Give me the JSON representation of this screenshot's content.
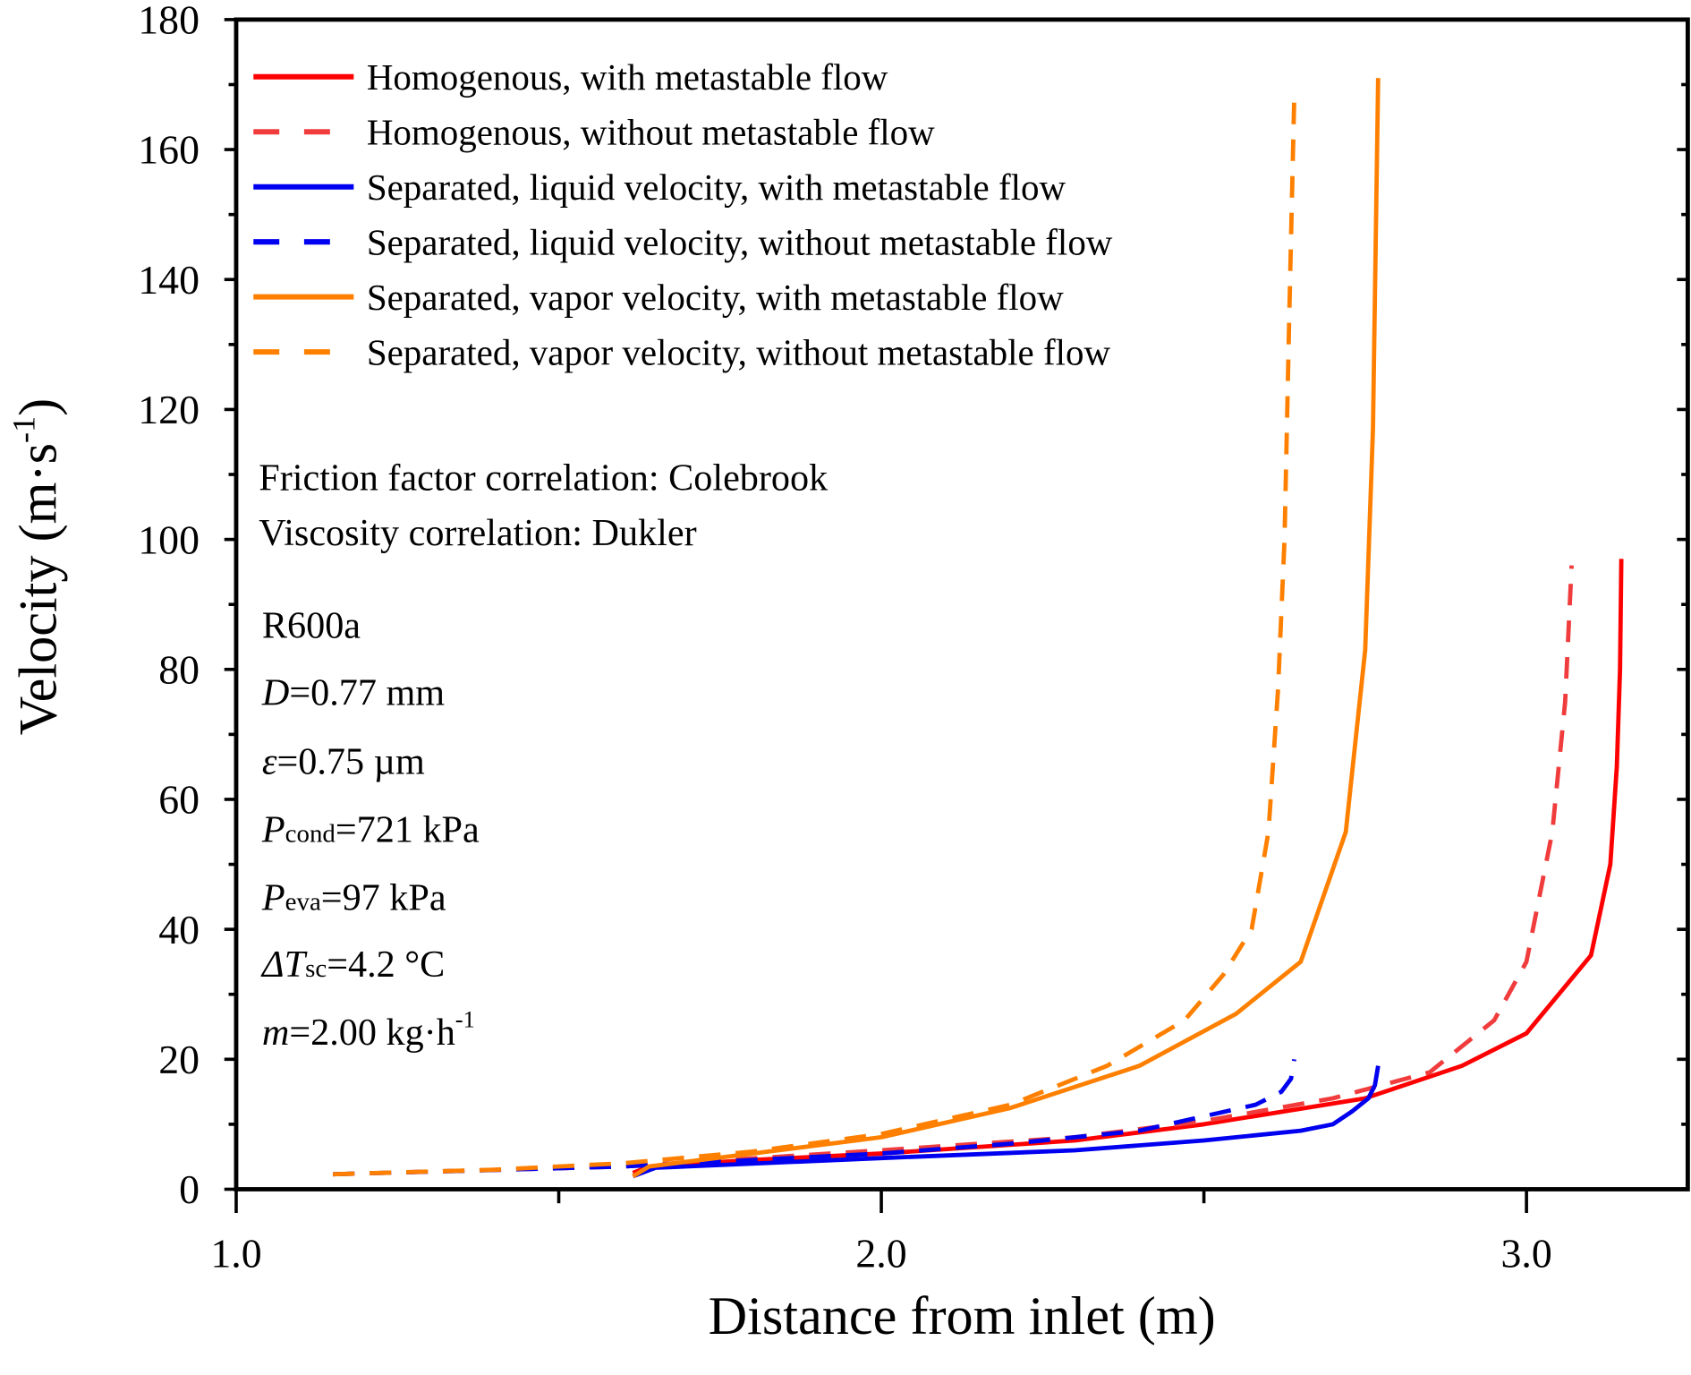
{
  "chart_data": {
    "type": "line",
    "xlabel": "Distance from inlet (m)",
    "ylabel": "Velocity (m·s",
    "ylabel_sup": "-1",
    "ylabel_end": ")",
    "xlim": [
      1.0,
      3.25
    ],
    "ylim": [
      0,
      180
    ],
    "xticks": [
      "1.0",
      "2.0",
      "3.0"
    ],
    "xtick_values": [
      1.0,
      2.0,
      3.0
    ],
    "xminor_values": [
      1.5,
      2.5
    ],
    "yticks": [
      "0",
      "20",
      "40",
      "60",
      "80",
      "100",
      "120",
      "140",
      "160",
      "180"
    ],
    "ytick_values": [
      0,
      20,
      40,
      60,
      80,
      100,
      120,
      140,
      160,
      180
    ],
    "grid": false,
    "legend_placement": "top-left",
    "series": [
      {
        "name": "Homogenous, with metastable flow",
        "color": "#ff0000",
        "dash": false,
        "x": [
          1.615,
          1.64,
          1.8,
          2.0,
          2.3,
          2.5,
          2.75,
          2.9,
          3.0,
          3.1,
          3.13,
          3.14,
          3.145,
          3.147
        ],
        "y": [
          2.5,
          3.5,
          4.5,
          5.5,
          7.5,
          10,
          14,
          19,
          24,
          36,
          50,
          65,
          80,
          97
        ]
      },
      {
        "name": "Homogenous, without metastable flow",
        "color": "#f03c3c",
        "dash": true,
        "x": [
          1.15,
          1.6,
          2.0,
          2.3,
          2.5,
          2.7,
          2.85,
          2.95,
          3.0,
          3.04,
          3.06,
          3.07
        ],
        "y": [
          2.3,
          3.5,
          6,
          8,
          10.5,
          14,
          18,
          26,
          35,
          55,
          75,
          96
        ]
      },
      {
        "name": "Separated, liquid velocity, with metastable flow",
        "color": "#0000f0",
        "dash": false,
        "x": [
          1.615,
          1.65,
          2.0,
          2.3,
          2.5,
          2.65,
          2.7,
          2.73,
          2.755,
          2.765,
          2.77
        ],
        "y": [
          2,
          3.3,
          4.8,
          6,
          7.5,
          9,
          10,
          12,
          14,
          16,
          19
        ]
      },
      {
        "name": "Separated, liquid velocity, without metastable flow",
        "color": "#0000f0",
        "dash": true,
        "x": [
          1.15,
          1.6,
          2.0,
          2.2,
          2.4,
          2.58,
          2.62,
          2.635,
          2.64
        ],
        "y": [
          2.3,
          3.5,
          5.5,
          7,
          9,
          13,
          15,
          17,
          20
        ]
      },
      {
        "name": "Separated, vapor velocity, with metastable flow",
        "color": "#ff8000",
        "dash": false,
        "x": [
          1.615,
          1.64,
          1.8,
          2.0,
          2.2,
          2.4,
          2.55,
          2.65,
          2.72,
          2.75,
          2.762,
          2.77
        ],
        "y": [
          2,
          3.5,
          5.5,
          8,
          12.5,
          19,
          27,
          35,
          55,
          83,
          117,
          171
        ]
      },
      {
        "name": "Separated, vapor velocity, without metastable flow",
        "color": "#ff8000",
        "dash": true,
        "x": [
          1.15,
          1.4,
          1.6,
          1.8,
          2.0,
          2.2,
          2.35,
          2.47,
          2.53,
          2.574,
          2.6,
          2.615,
          2.625,
          2.632,
          2.64
        ],
        "y": [
          2.3,
          3,
          4,
          5.8,
          8.5,
          13,
          19,
          26,
          33,
          40,
          55,
          77,
          100,
          133,
          168
        ]
      }
    ],
    "annotations": {
      "friction": "Friction factor correlation: Colebrook",
      "viscosity": "Viscosity correlation: Dukler",
      "fluid": "R600a",
      "d_sym": "D",
      "d_val": "=0.77 mm",
      "eps_sym": "ε",
      "eps_val": "=0.75 µm",
      "pc_sym": "P",
      "pc_sub": "cond",
      "pc_val": "=721 kPa",
      "pe_sym": "P",
      "pe_sub": "eva",
      "pe_val": "=97 kPa",
      "dt_sym": "ΔT",
      "dt_sub": "sc",
      "dt_val": "=4.2 °C",
      "m_sym": "m",
      "m_val": "=2.00 kg·h",
      "m_sup": "-1"
    }
  }
}
